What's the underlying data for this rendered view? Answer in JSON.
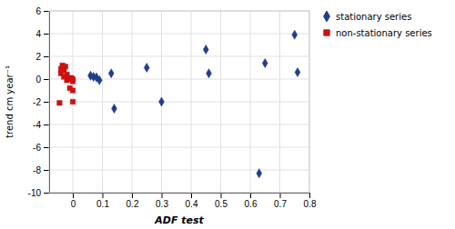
{
  "chart_data": {
    "type": "scatter",
    "x_label": "ADF test",
    "y_label": "trend cm year⁻¹",
    "xlim": [
      -0.08,
      0.8
    ],
    "ylim": [
      -10,
      6
    ],
    "xticks": [
      0,
      0.1,
      0.2,
      0.3,
      0.4,
      0.5,
      0.6,
      0.7,
      0.8
    ],
    "yticks": [
      -10,
      -8,
      -6,
      -4,
      -2,
      0,
      2,
      4,
      6
    ],
    "grid": true,
    "legend": "right",
    "series": [
      {
        "name": "stationary series",
        "color": "#1F3E8C",
        "marker": "diamond",
        "x": [
          0.06,
          0.07,
          0.08,
          0.09,
          0.13,
          0.14,
          0.25,
          0.3,
          0.45,
          0.46,
          0.63,
          0.65,
          0.75,
          0.76
        ],
        "values": [
          0.3,
          0.2,
          0.15,
          -0.1,
          0.5,
          -2.6,
          1.0,
          -2.0,
          2.6,
          0.5,
          -8.3,
          1.4,
          3.9,
          0.6
        ]
      },
      {
        "name": "non-stationary series",
        "color": "#CC1111",
        "marker": "square",
        "x": [
          -0.04,
          -0.04,
          -0.035,
          -0.03,
          -0.025,
          -0.02,
          -0.02,
          -0.015,
          -0.01,
          -0.005,
          0.0,
          0.0,
          0.0,
          0.0,
          -0.045,
          -0.03
        ],
        "values": [
          0.9,
          0.5,
          1.2,
          0.8,
          1.1,
          0.4,
          -0.1,
          0.0,
          -0.8,
          0.1,
          -0.2,
          -1.0,
          0.0,
          -2.0,
          -2.1,
          0.2
        ]
      }
    ]
  }
}
